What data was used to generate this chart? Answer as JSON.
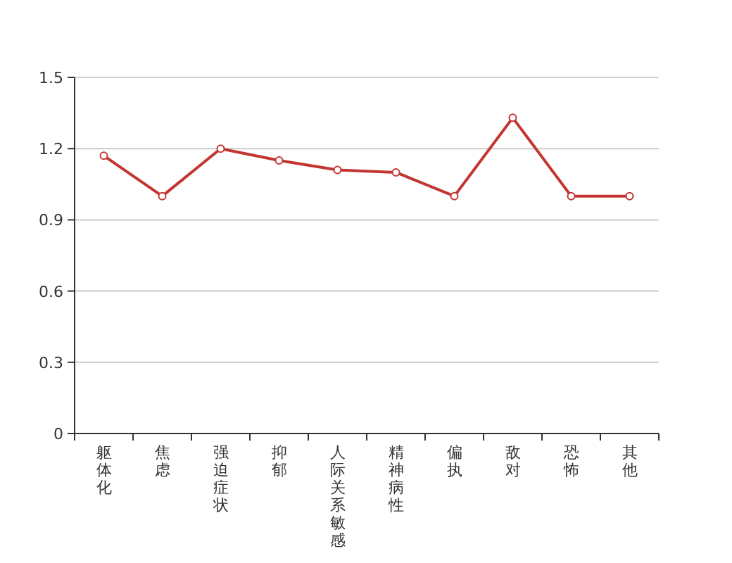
{
  "chart_data": {
    "type": "line",
    "categories": [
      "躯体化",
      "焦虑",
      "强迫症状",
      "抑郁",
      "人际关系敏感",
      "精神病性",
      "偏执",
      "敌对",
      "恐怖",
      "其他"
    ],
    "series": [
      {
        "color": "#c23531",
        "values": [
          1.17,
          1.0,
          1.2,
          1.15,
          1.11,
          1.1,
          1.0,
          1.33,
          1.0,
          1.0
        ]
      }
    ],
    "ylim": [
      0,
      1.5
    ],
    "yticks": [
      0,
      0.3,
      0.6,
      0.9,
      1.2,
      1.5
    ],
    "grid": "y",
    "marker": "circle",
    "line_style": "solid"
  }
}
